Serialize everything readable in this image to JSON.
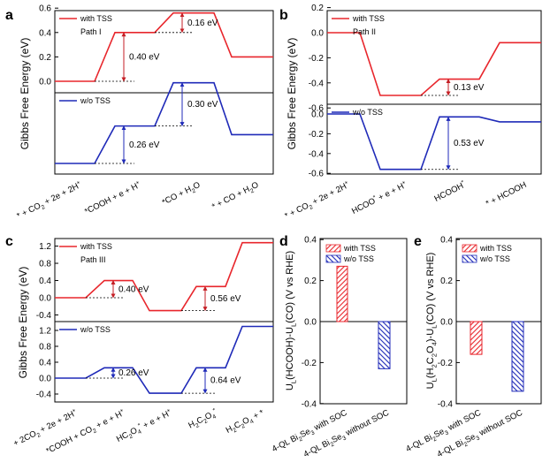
{
  "colors": {
    "red": "#e8262c",
    "blue": "#1f2ab8",
    "annotation_red": "#c41e24",
    "annotation_blue": "#1f2ab8",
    "axis": "#000000",
    "dotted": "#000000"
  },
  "chart_data": [
    {
      "panel": "a",
      "type": "line",
      "title": "",
      "ylabel": "Gibbs Free Energy (eV)",
      "xlabel": "",
      "categories": [
        "* + CO2 + 2e + 2H+",
        "*COOH + e + H+",
        "*CO + H2O",
        "* + CO + H2O"
      ],
      "category_texts": [
        {
          "name": "a-xlabel-0",
          "parts": [
            {
              "t": "* + CO"
            },
            {
              "t": "2",
              "s": "sub"
            },
            {
              "t": " + 2e + 2H"
            },
            {
              "t": "+",
              "s": "sup"
            }
          ]
        },
        {
          "name": "a-xlabel-1",
          "parts": [
            {
              "t": "*COOH + e + H"
            },
            {
              "t": "+",
              "s": "sup"
            }
          ]
        },
        {
          "name": "a-xlabel-2",
          "parts": [
            {
              "t": "*CO + H"
            },
            {
              "t": "2",
              "s": "sub"
            },
            {
              "t": "O"
            }
          ]
        },
        {
          "name": "a-xlabel-3",
          "parts": [
            {
              "t": "* + CO + H"
            },
            {
              "t": "2",
              "s": "sub"
            },
            {
              "t": "O"
            }
          ]
        }
      ],
      "series": [
        {
          "name": "with TSS",
          "sublabel": "Path I",
          "values": [
            0,
            0.4,
            0.56,
            0.2
          ],
          "ylim": [
            -0.05,
            0.6
          ],
          "ticks": [
            {
              "v": 0,
              "label": "0.0"
            },
            {
              "v": 0.2,
              "label": "0.2"
            },
            {
              "v": 0.4,
              "label": "0.4"
            },
            {
              "v": 0.6,
              "label": "0.6"
            }
          ],
          "annotations": [
            {
              "from_step": 0,
              "to_step": 1,
              "value": 0.4,
              "label": "0.40 eV"
            },
            {
              "from_step": 1,
              "to_step": 2,
              "value": 0.16,
              "label": "0.16 eV"
            }
          ]
        },
        {
          "name": "w/o TSS",
          "sublabel": "",
          "values": [
            0,
            0.26,
            0.56,
            0.2
          ],
          "ylim": [
            -0.05,
            0.6
          ],
          "ticks": [],
          "annotations": [
            {
              "from_step": 0,
              "to_step": 1,
              "value": 0.26,
              "label": "0.26 eV"
            },
            {
              "from_step": 1,
              "to_step": 2,
              "value": 0.3,
              "label": "0.30 eV"
            }
          ]
        }
      ]
    },
    {
      "panel": "b",
      "type": "line",
      "title": "",
      "ylabel": "Gibbs Free Energy (eV)",
      "xlabel": "",
      "categories": [
        "* + CO2 + 2e + 2H+",
        "HCOO* + e + H+",
        "HCOOH*",
        "* + HCOOH"
      ],
      "category_texts": [
        {
          "name": "b-xlabel-0",
          "parts": [
            {
              "t": "* + CO"
            },
            {
              "t": "2",
              "s": "sub"
            },
            {
              "t": " + 2e + 2H"
            },
            {
              "t": "+",
              "s": "sup"
            }
          ]
        },
        {
          "name": "b-xlabel-1",
          "parts": [
            {
              "t": "HCOO"
            },
            {
              "t": "*",
              "s": "sup"
            },
            {
              "t": " + e + H"
            },
            {
              "t": "+",
              "s": "sup"
            }
          ]
        },
        {
          "name": "b-xlabel-2",
          "parts": [
            {
              "t": "HCOOH"
            },
            {
              "t": "*",
              "s": "sup"
            }
          ]
        },
        {
          "name": "b-xlabel-3",
          "parts": [
            {
              "t": "* + HCOOH"
            }
          ]
        }
      ],
      "series": [
        {
          "name": "with TSS",
          "sublabel": "Path II",
          "values": [
            0,
            -0.5,
            -0.37,
            -0.08
          ],
          "ylim": [
            -0.6,
            0.2
          ],
          "ticks": [
            {
              "v": 0.2,
              "label": "0.2"
            },
            {
              "v": 0,
              "label": "0.0"
            },
            {
              "v": -0.2,
              "label": "-0.2"
            },
            {
              "v": -0.4,
              "label": "-0.4"
            },
            {
              "v": -0.6,
              "label": "-0.6"
            }
          ],
          "annotations": [
            {
              "from_step": 1,
              "to_step": 2,
              "value": 0.13,
              "label": "0.13 eV"
            }
          ]
        },
        {
          "name": "w/o TSS",
          "sublabel": "",
          "values": [
            0,
            -0.56,
            -0.03,
            -0.08
          ],
          "ylim": [
            -0.6,
            0.1
          ],
          "ticks": [
            {
              "v": 0,
              "label": "0.0"
            },
            {
              "v": -0.2,
              "label": "-0.2"
            },
            {
              "v": -0.4,
              "label": "-0.4"
            },
            {
              "v": -0.6,
              "label": "-0.6"
            }
          ],
          "annotations": [
            {
              "from_step": 1,
              "to_step": 2,
              "value": 0.53,
              "label": "0.53 eV"
            }
          ]
        }
      ]
    },
    {
      "panel": "c",
      "type": "line",
      "title": "",
      "ylabel": "Gibbs Free Energy (eV)",
      "xlabel": "",
      "categories": [
        "+ 2CO2 + 2e + 2H+",
        "*COOH + CO2 + e + H+",
        "HC2O4* + e + H+",
        "H2C2O4*",
        "H2C2O4 + *"
      ],
      "category_texts": [
        {
          "name": "c-xlabel-0",
          "parts": [
            {
              "t": "+ 2CO"
            },
            {
              "t": "2",
              "s": "sub"
            },
            {
              "t": " + 2e + 2H"
            },
            {
              "t": "+",
              "s": "sup"
            }
          ]
        },
        {
          "name": "c-xlabel-1",
          "parts": [
            {
              "t": "*COOH + CO"
            },
            {
              "t": "2",
              "s": "sub"
            },
            {
              "t": " + e + H"
            },
            {
              "t": "+",
              "s": "sup"
            }
          ]
        },
        {
          "name": "c-xlabel-2",
          "parts": [
            {
              "t": "HC"
            },
            {
              "t": "2",
              "s": "sub"
            },
            {
              "t": "O"
            },
            {
              "t": "4",
              "s": "sub"
            },
            {
              "t": "*",
              "s": "sup"
            },
            {
              "t": " + e + H"
            },
            {
              "t": "+",
              "s": "sup"
            }
          ]
        },
        {
          "name": "c-xlabel-3",
          "parts": [
            {
              "t": "H"
            },
            {
              "t": "2",
              "s": "sub"
            },
            {
              "t": "C"
            },
            {
              "t": "2",
              "s": "sub"
            },
            {
              "t": "O"
            },
            {
              "t": "4",
              "s": "sub"
            },
            {
              "t": "*",
              "s": "sup"
            }
          ]
        },
        {
          "name": "c-xlabel-4",
          "parts": [
            {
              "t": "H"
            },
            {
              "t": "2",
              "s": "sub"
            },
            {
              "t": "C"
            },
            {
              "t": "2",
              "s": "sub"
            },
            {
              "t": "O"
            },
            {
              "t": "4",
              "s": "sub"
            },
            {
              "t": " + *"
            }
          ]
        }
      ],
      "series": [
        {
          "name": "with TSS",
          "sublabel": "Path III",
          "values": [
            0,
            0.4,
            -0.3,
            0.26,
            1.28
          ],
          "ylim": [
            -0.5,
            1.3
          ],
          "ticks": [
            {
              "v": 1.2,
              "label": "1.2"
            },
            {
              "v": 0.8,
              "label": "0.8"
            },
            {
              "v": 0.4,
              "label": "0.4"
            },
            {
              "v": 0,
              "label": "0.0"
            },
            {
              "v": -0.4,
              "label": "-0.4"
            }
          ],
          "annotations": [
            {
              "from_step": 0,
              "to_step": 1,
              "value": 0.4,
              "label": "0.40 eV"
            },
            {
              "from_step": 2,
              "to_step": 3,
              "value": 0.56,
              "label": "0.56 eV"
            }
          ]
        },
        {
          "name": "w/o TSS",
          "sublabel": "",
          "values": [
            0,
            0.26,
            -0.38,
            0.26,
            1.3
          ],
          "ylim": [
            -0.5,
            1.4
          ],
          "ticks": [
            {
              "v": 1.2,
              "label": "1.2"
            },
            {
              "v": 0.8,
              "label": "0.8"
            },
            {
              "v": 0.4,
              "label": "0.4"
            },
            {
              "v": 0,
              "label": "0.0"
            },
            {
              "v": -0.4,
              "label": "-0.4"
            }
          ],
          "annotations": [
            {
              "from_step": 0,
              "to_step": 1,
              "value": 0.26,
              "label": "0.26 eV"
            },
            {
              "from_step": 2,
              "to_step": 3,
              "value": 0.64,
              "label": "0.64 eV"
            }
          ]
        }
      ]
    },
    {
      "panel": "d",
      "type": "bar",
      "title": "",
      "ylabel_parts": [
        {
          "t": "U"
        },
        {
          "t": "L",
          "s": "sub"
        },
        {
          "t": "(HCOOH)-U"
        },
        {
          "t": "L",
          "s": "sub"
        },
        {
          "t": "(CO) (V vs RHE)"
        }
      ],
      "xlabel": "",
      "categories": [
        "4-QL Bi2Se3 with SOC",
        "4-QL Bi2Se3 without SOC"
      ],
      "category_texts": [
        {
          "name": "d-xlabel-0",
          "parts": [
            {
              "t": "4-QL  Bi"
            },
            {
              "t": "2",
              "s": "sub"
            },
            {
              "t": "Se"
            },
            {
              "t": "3",
              "s": "sub"
            },
            {
              "t": " with SOC"
            }
          ]
        },
        {
          "name": "d-xlabel-1",
          "parts": [
            {
              "t": "4-QL  Bi"
            },
            {
              "t": "2",
              "s": "sub"
            },
            {
              "t": "Se"
            },
            {
              "t": "3",
              "s": "sub"
            },
            {
              "t": " without SOC"
            }
          ]
        }
      ],
      "series": [
        {
          "name": "with TSS",
          "values": [
            0.27,
            null
          ]
        },
        {
          "name": "w/o TSS",
          "values": [
            null,
            -0.23
          ]
        }
      ],
      "ylim": [
        -0.4,
        0.4
      ],
      "ticks": [
        {
          "v": 0.4,
          "label": "0.4"
        },
        {
          "v": 0.2,
          "label": "0.2"
        },
        {
          "v": 0,
          "label": "0.0"
        },
        {
          "v": -0.2,
          "label": "-0.2"
        },
        {
          "v": -0.4,
          "label": "-0.4"
        }
      ]
    },
    {
      "panel": "e",
      "type": "bar",
      "title": "",
      "ylabel_parts": [
        {
          "t": "U"
        },
        {
          "t": "L",
          "s": "sub"
        },
        {
          "t": "(H"
        },
        {
          "t": "2",
          "s": "sub"
        },
        {
          "t": "C"
        },
        {
          "t": "2",
          "s": "sub"
        },
        {
          "t": "O"
        },
        {
          "t": "4",
          "s": "sub"
        },
        {
          "t": ")-U"
        },
        {
          "t": "L",
          "s": "sub"
        },
        {
          "t": "(CO) (V vs RHE)"
        }
      ],
      "xlabel": "",
      "categories": [
        "4-QL Bi2Se3 with SOC",
        "4-QL Bi2Se3 without SOC"
      ],
      "category_texts": [
        {
          "name": "e-xlabel-0",
          "parts": [
            {
              "t": "4-QL  Bi"
            },
            {
              "t": "2",
              "s": "sub"
            },
            {
              "t": "Se"
            },
            {
              "t": "3",
              "s": "sub"
            },
            {
              "t": " with SOC"
            }
          ]
        },
        {
          "name": "e-xlabel-1",
          "parts": [
            {
              "t": "4-QL  Bi"
            },
            {
              "t": "2",
              "s": "sub"
            },
            {
              "t": "Se"
            },
            {
              "t": "3",
              "s": "sub"
            },
            {
              "t": " without SOC"
            }
          ]
        }
      ],
      "series": [
        {
          "name": "with TSS",
          "values": [
            -0.16,
            null
          ]
        },
        {
          "name": "w/o TSS",
          "values": [
            null,
            -0.34
          ]
        }
      ],
      "ylim": [
        -0.4,
        0.4
      ],
      "ticks": [
        {
          "v": 0.4,
          "label": "0.4"
        },
        {
          "v": 0.2,
          "label": "0.2"
        },
        {
          "v": 0,
          "label": "0.0"
        },
        {
          "v": -0.2,
          "label": "-0.2"
        },
        {
          "v": -0.4,
          "label": "-0.4"
        }
      ]
    }
  ]
}
